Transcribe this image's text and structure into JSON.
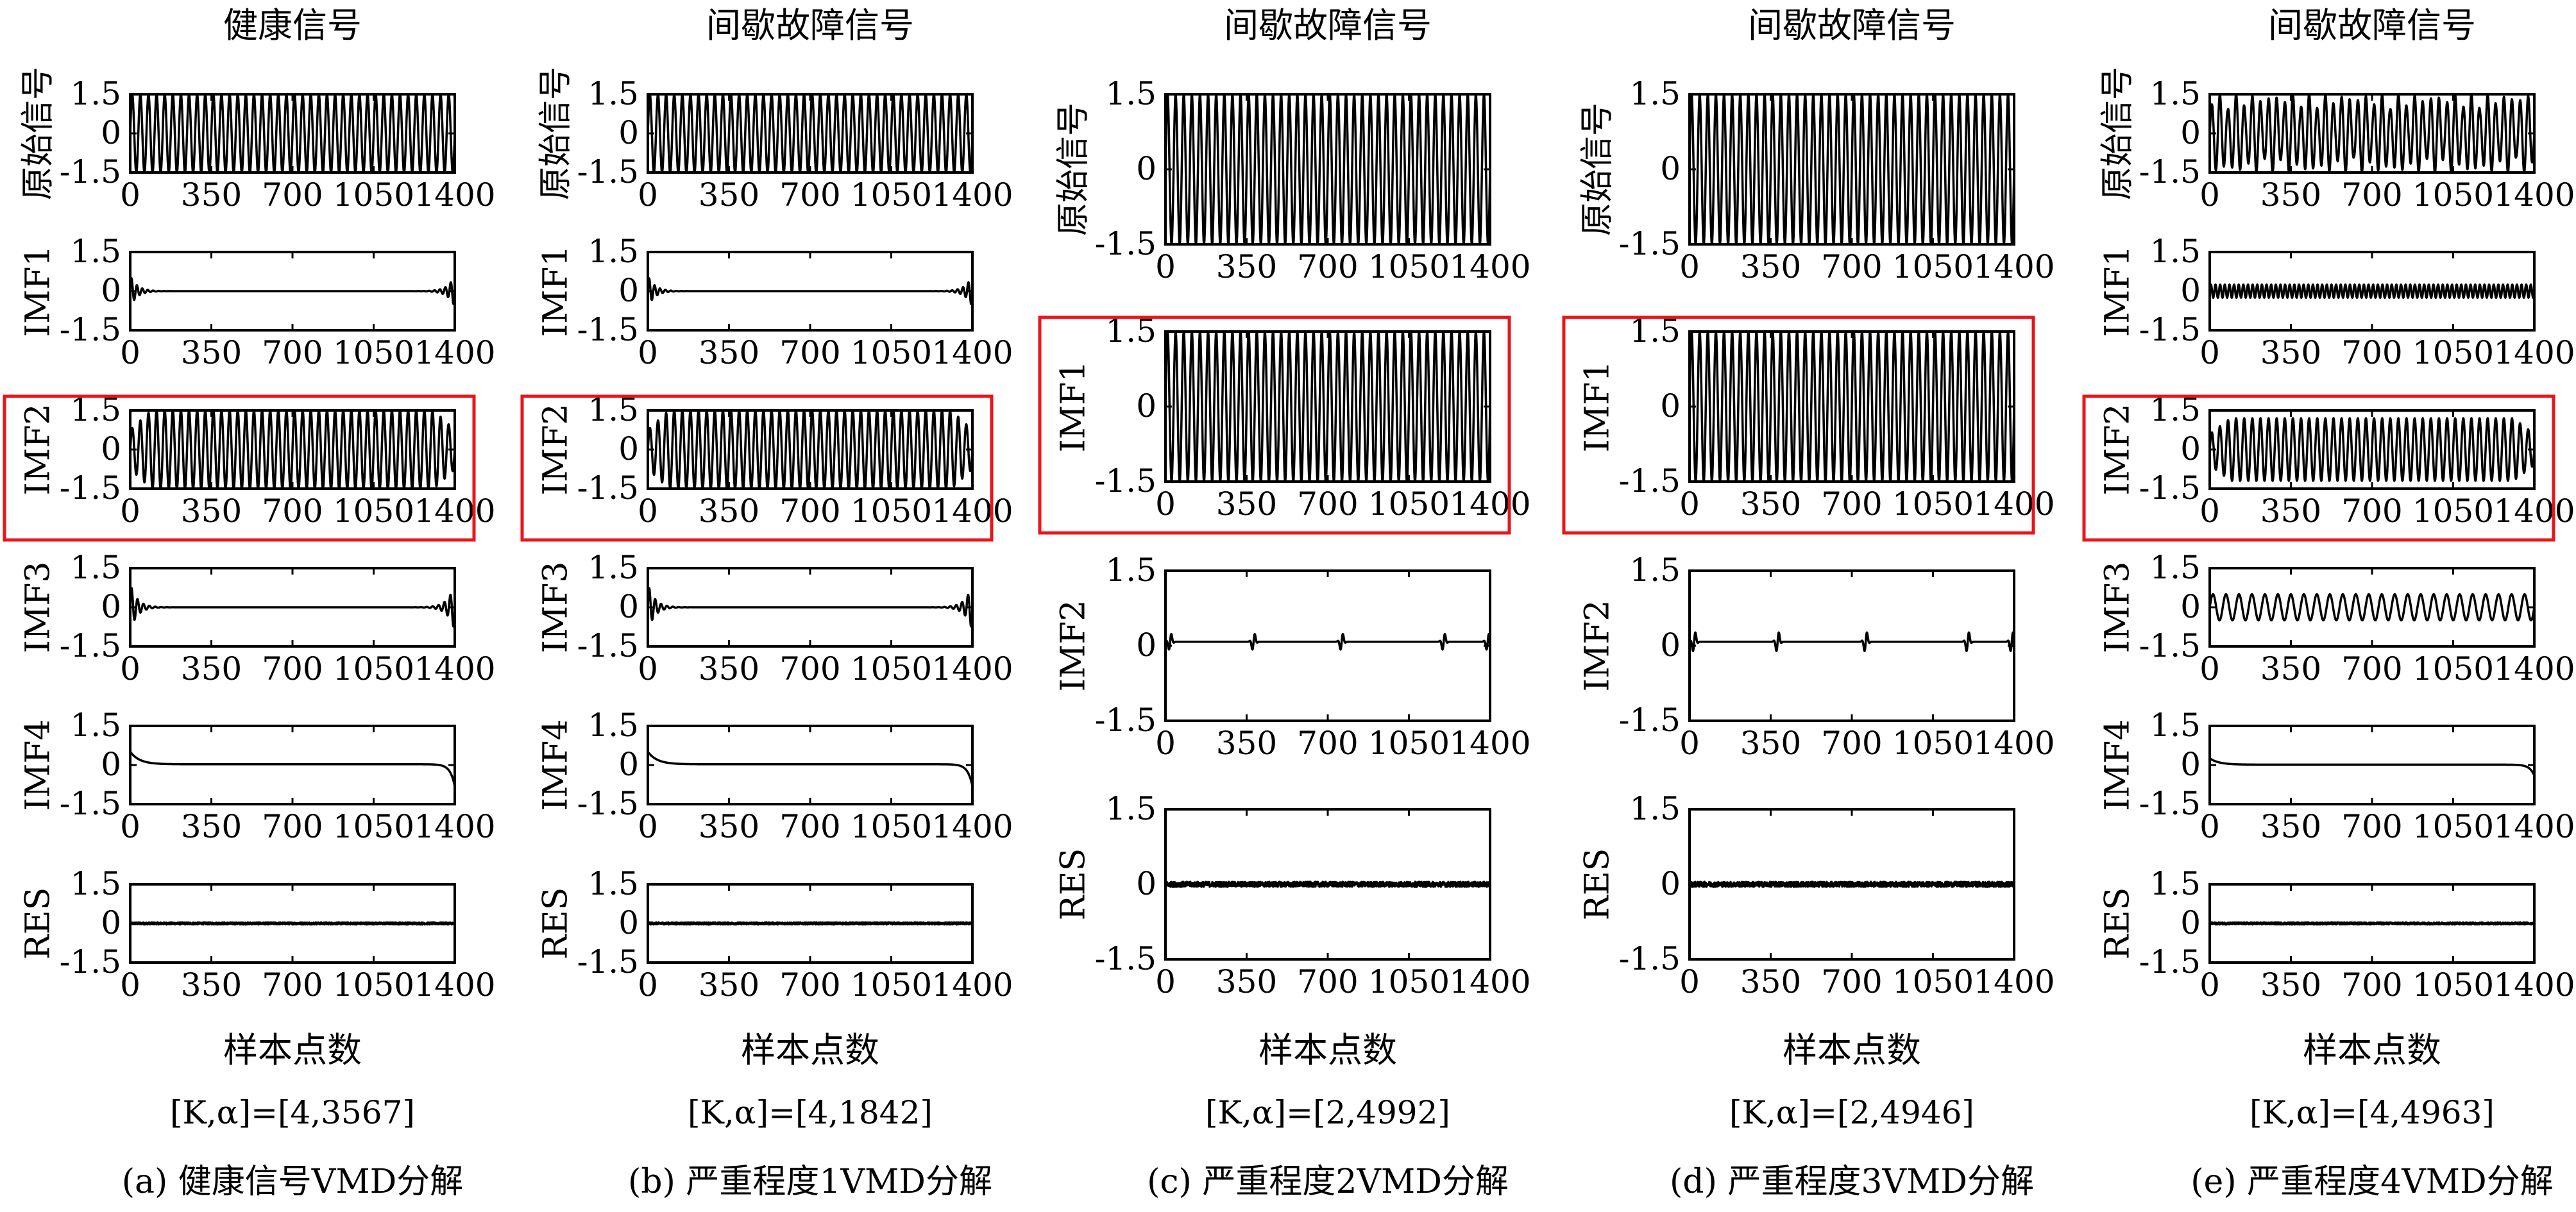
{
  "chart_data": [
    {
      "type": "line",
      "title": "健康信号",
      "xlabel": "样本点数",
      "params": "[K,α]=[4,3567]",
      "caption": "(a) 健康信号VMD分解",
      "highlighted": "IMF2",
      "panels": [
        {
          "ylabel": "原始信号",
          "ylim": [
            -1.5,
            1.5
          ],
          "yticks": [
            "1.5",
            "0",
            "-1.5"
          ],
          "xlim": [
            0,
            1400
          ],
          "xticks": [
            "0",
            "350",
            "700",
            "1050",
            "1400"
          ],
          "signal": {
            "kind": "sine",
            "amplitude": 1.5,
            "cycles": 40
          }
        },
        {
          "ylabel": "IMF1",
          "ylim": [
            -1.5,
            1.5
          ],
          "yticks": [
            "1.5",
            "0",
            "-1.5"
          ],
          "xlim": [
            0,
            1400
          ],
          "xticks": [
            "0",
            "350",
            "700",
            "1050",
            "1400"
          ],
          "signal": {
            "kind": "edge_ring",
            "amplitude": 0.6,
            "cycles": 60
          }
        },
        {
          "ylabel": "IMF2",
          "ylim": [
            -1.5,
            1.5
          ],
          "yticks": [
            "1.5",
            "0",
            "-1.5"
          ],
          "xlim": [
            0,
            1400
          ],
          "xticks": [
            "0",
            "350",
            "700",
            "1050",
            "1400"
          ],
          "signal": {
            "kind": "sine_taper",
            "amplitude": 1.5,
            "cycles": 40
          }
        },
        {
          "ylabel": "IMF3",
          "ylim": [
            -1.5,
            1.5
          ],
          "yticks": [
            "1.5",
            "0",
            "-1.5"
          ],
          "xlim": [
            0,
            1400
          ],
          "xticks": [
            "0",
            "350",
            "700",
            "1050",
            "1400"
          ],
          "signal": {
            "kind": "edge_ring",
            "amplitude": 0.9,
            "cycles": 55
          }
        },
        {
          "ylabel": "IMF4",
          "ylim": [
            -1.5,
            1.5
          ],
          "yticks": [
            "1.5",
            "0",
            "-1.5"
          ],
          "xlim": [
            0,
            1400
          ],
          "xticks": [
            "0",
            "350",
            "700",
            "1050",
            "1400"
          ],
          "signal": {
            "kind": "trend",
            "amplitude": 0.6
          }
        },
        {
          "ylabel": "RES",
          "ylim": [
            -1.5,
            1.5
          ],
          "yticks": [
            "1.5",
            "0",
            "-1.5"
          ],
          "xlim": [
            0,
            1400
          ],
          "xticks": [
            "0",
            "350",
            "700",
            "1050",
            "1400"
          ],
          "signal": {
            "kind": "noise",
            "amplitude": 0.04
          }
        }
      ]
    },
    {
      "type": "line",
      "title": "间歇故障信号",
      "xlabel": "样本点数",
      "params": "[K,α]=[4,1842]",
      "caption": "(b) 严重程度1VMD分解",
      "highlighted": "IMF2",
      "panels": [
        {
          "ylabel": "原始信号",
          "ylim": [
            -1.5,
            1.5
          ],
          "yticks": [
            "1.5",
            "0",
            "-1.5"
          ],
          "xlim": [
            0,
            1400
          ],
          "xticks": [
            "0",
            "350",
            "700",
            "1050",
            "1400"
          ],
          "signal": {
            "kind": "sine",
            "amplitude": 1.5,
            "cycles": 40
          }
        },
        {
          "ylabel": "IMF1",
          "ylim": [
            -1.5,
            1.5
          ],
          "yticks": [
            "1.5",
            "0",
            "-1.5"
          ],
          "xlim": [
            0,
            1400
          ],
          "xticks": [
            "0",
            "350",
            "700",
            "1050",
            "1400"
          ],
          "signal": {
            "kind": "edge_ring",
            "amplitude": 0.6,
            "cycles": 60
          }
        },
        {
          "ylabel": "IMF2",
          "ylim": [
            -1.5,
            1.5
          ],
          "yticks": [
            "1.5",
            "0",
            "-1.5"
          ],
          "xlim": [
            0,
            1400
          ],
          "xticks": [
            "0",
            "350",
            "700",
            "1050",
            "1400"
          ],
          "signal": {
            "kind": "sine_taper",
            "amplitude": 1.5,
            "cycles": 40
          }
        },
        {
          "ylabel": "IMF3",
          "ylim": [
            -1.5,
            1.5
          ],
          "yticks": [
            "1.5",
            "0",
            "-1.5"
          ],
          "xlim": [
            0,
            1400
          ],
          "xticks": [
            "0",
            "350",
            "700",
            "1050",
            "1400"
          ],
          "signal": {
            "kind": "edge_ring",
            "amplitude": 0.9,
            "cycles": 55
          }
        },
        {
          "ylabel": "IMF4",
          "ylim": [
            -1.5,
            1.5
          ],
          "yticks": [
            "1.5",
            "0",
            "-1.5"
          ],
          "xlim": [
            0,
            1400
          ],
          "xticks": [
            "0",
            "350",
            "700",
            "1050",
            "1400"
          ],
          "signal": {
            "kind": "trend",
            "amplitude": 0.6
          }
        },
        {
          "ylabel": "RES",
          "ylim": [
            -1.5,
            1.5
          ],
          "yticks": [
            "1.5",
            "0",
            "-1.5"
          ],
          "xlim": [
            0,
            1400
          ],
          "xticks": [
            "0",
            "350",
            "700",
            "1050",
            "1400"
          ],
          "signal": {
            "kind": "noise",
            "amplitude": 0.04
          }
        }
      ]
    },
    {
      "type": "line",
      "title": "间歇故障信号",
      "xlabel": "样本点数",
      "params": "[K,α]=[2,4992]",
      "caption": "(c) 严重程度2VMD分解",
      "highlighted": "IMF1",
      "panels": [
        {
          "ylabel": "原始信号",
          "ylim": [
            -1.5,
            1.5
          ],
          "yticks": [
            "1.5",
            "0",
            "-1.5"
          ],
          "xlim": [
            0,
            1400
          ],
          "xticks": [
            "0",
            "350",
            "700",
            "1050",
            "1400"
          ],
          "signal": {
            "kind": "sine",
            "amplitude": 1.5,
            "cycles": 40
          }
        },
        {
          "ylabel": "IMF1",
          "ylim": [
            -1.5,
            1.5
          ],
          "yticks": [
            "1.5",
            "0",
            "-1.5"
          ],
          "xlim": [
            0,
            1400
          ],
          "xticks": [
            "0",
            "350",
            "700",
            "1050",
            "1400"
          ],
          "signal": {
            "kind": "sine",
            "amplitude": 1.5,
            "cycles": 40
          }
        },
        {
          "ylabel": "IMF2",
          "ylim": [
            -1.5,
            1.5
          ],
          "yticks": [
            "1.5",
            "0",
            "-1.5"
          ],
          "xlim": [
            0,
            1400
          ],
          "xticks": [
            "0",
            "350",
            "700",
            "1050",
            "1400"
          ],
          "signal": {
            "kind": "bumps",
            "amplitude": 0.25
          }
        },
        {
          "ylabel": "RES",
          "ylim": [
            -1.5,
            1.5
          ],
          "yticks": [
            "1.5",
            "0",
            "-1.5"
          ],
          "xlim": [
            0,
            1400
          ],
          "xticks": [
            "0",
            "350",
            "700",
            "1050",
            "1400"
          ],
          "signal": {
            "kind": "noise",
            "amplitude": 0.05
          }
        }
      ]
    },
    {
      "type": "line",
      "title": "间歇故障信号",
      "xlabel": "样本点数",
      "params": "[K,α]=[2,4946]",
      "caption": "(d) 严重程度3VMD分解",
      "highlighted": "IMF1",
      "panels": [
        {
          "ylabel": "原始信号",
          "ylim": [
            -1.5,
            1.5
          ],
          "yticks": [
            "1.5",
            "0",
            "-1.5"
          ],
          "xlim": [
            0,
            1400
          ],
          "xticks": [
            "0",
            "350",
            "700",
            "1050",
            "1400"
          ],
          "signal": {
            "kind": "sine",
            "amplitude": 1.5,
            "cycles": 40
          }
        },
        {
          "ylabel": "IMF1",
          "ylim": [
            -1.5,
            1.5
          ],
          "yticks": [
            "1.5",
            "0",
            "-1.5"
          ],
          "xlim": [
            0,
            1400
          ],
          "xticks": [
            "0",
            "350",
            "700",
            "1050",
            "1400"
          ],
          "signal": {
            "kind": "sine",
            "amplitude": 1.5,
            "cycles": 40
          }
        },
        {
          "ylabel": "IMF2",
          "ylim": [
            -1.5,
            1.5
          ],
          "yticks": [
            "1.5",
            "0",
            "-1.5"
          ],
          "xlim": [
            0,
            1400
          ],
          "xticks": [
            "0",
            "350",
            "700",
            "1050",
            "1400"
          ],
          "signal": {
            "kind": "bumps",
            "amplitude": 0.3
          }
        },
        {
          "ylabel": "RES",
          "ylim": [
            -1.5,
            1.5
          ],
          "yticks": [
            "1.5",
            "0",
            "-1.5"
          ],
          "xlim": [
            0,
            1400
          ],
          "xticks": [
            "0",
            "350",
            "700",
            "1050",
            "1400"
          ],
          "signal": {
            "kind": "noise",
            "amplitude": 0.05
          }
        }
      ]
    },
    {
      "type": "line",
      "title": "间歇故障信号",
      "xlabel": "样本点数",
      "params": "[K,α]=[4,4963]",
      "caption": "(e) 严重程度4VMD分解",
      "highlighted": "IMF2",
      "panels": [
        {
          "ylabel": "原始信号",
          "ylim": [
            -1.5,
            1.5
          ],
          "yticks": [
            "1.5",
            "0",
            "-1.5"
          ],
          "xlim": [
            0,
            1400
          ],
          "xticks": [
            "0",
            "350",
            "700",
            "1050",
            "1400"
          ],
          "signal": {
            "kind": "sine_am",
            "amplitude": 1.5,
            "cycles": 40
          }
        },
        {
          "ylabel": "IMF1",
          "ylim": [
            -1.5,
            1.5
          ],
          "yticks": [
            "1.5",
            "0",
            "-1.5"
          ],
          "xlim": [
            0,
            1400
          ],
          "xticks": [
            "0",
            "350",
            "700",
            "1050",
            "1400"
          ],
          "signal": {
            "kind": "sine_small",
            "amplitude": 0.25,
            "cycles": 70
          }
        },
        {
          "ylabel": "IMF2",
          "ylim": [
            -1.5,
            1.5
          ],
          "yticks": [
            "1.5",
            "0",
            "-1.5"
          ],
          "xlim": [
            0,
            1400
          ],
          "xticks": [
            "0",
            "350",
            "700",
            "1050",
            "1400"
          ],
          "signal": {
            "kind": "sine_taper",
            "amplitude": 1.2,
            "cycles": 40
          }
        },
        {
          "ylabel": "IMF3",
          "ylim": [
            -1.5,
            1.5
          ],
          "yticks": [
            "1.5",
            "0",
            "-1.5"
          ],
          "xlim": [
            0,
            1400
          ],
          "xticks": [
            "0",
            "350",
            "700",
            "1050",
            "1400"
          ],
          "signal": {
            "kind": "sine_small",
            "amplitude": 0.5,
            "cycles": 25
          }
        },
        {
          "ylabel": "IMF4",
          "ylim": [
            -1.5,
            1.5
          ],
          "yticks": [
            "1.5",
            "0",
            "-1.5"
          ],
          "xlim": [
            0,
            1400
          ],
          "xticks": [
            "0",
            "350",
            "700",
            "1050",
            "1400"
          ],
          "signal": {
            "kind": "trend",
            "amplitude": 0.3
          }
        },
        {
          "ylabel": "RES",
          "ylim": [
            -1.5,
            1.5
          ],
          "yticks": [
            "1.5",
            "0",
            "-1.5"
          ],
          "xlim": [
            0,
            1400
          ],
          "xticks": [
            "0",
            "350",
            "700",
            "1050",
            "1400"
          ],
          "signal": {
            "kind": "noise",
            "amplitude": 0.04
          }
        }
      ]
    }
  ],
  "colors": {
    "trace": "#000000",
    "highlight": "#e8161b",
    "background": "#ffffff"
  }
}
